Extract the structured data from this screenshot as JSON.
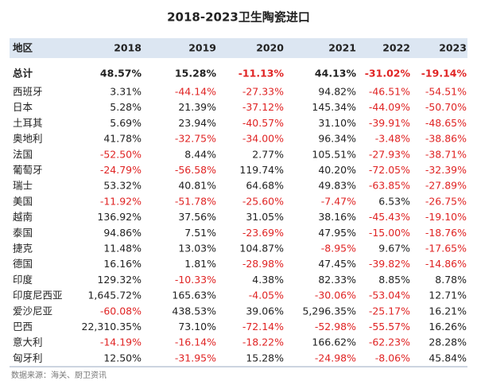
{
  "title": "2018-2023卫生陶瓷进口",
  "table": {
    "header": [
      "地区",
      "2018",
      "2019",
      "2020",
      "2021",
      "2022",
      "2023"
    ],
    "rows": [
      [
        "总计",
        "48.57%",
        "15.28%",
        "-11.13%",
        "44.13%",
        "-31.02%",
        "-19.14%"
      ],
      [
        "西班牙",
        "3.31%",
        "-44.14%",
        "-27.33%",
        "94.82%",
        "-46.51%",
        "-54.51%"
      ],
      [
        "日本",
        "5.28%",
        "21.39%",
        "-37.12%",
        "145.34%",
        "-44.09%",
        "-50.70%"
      ],
      [
        "土耳其",
        "5.69%",
        "23.94%",
        "-40.57%",
        "31.10%",
        "-39.91%",
        "-48.65%"
      ],
      [
        "奥地利",
        "41.78%",
        "-32.75%",
        "-34.00%",
        "96.34%",
        "-3.48%",
        "-38.86%"
      ],
      [
        "法国",
        "-52.50%",
        "8.44%",
        "2.77%",
        "105.51%",
        "-27.93%",
        "-38.71%"
      ],
      [
        "葡萄牙",
        "-24.79%",
        "-56.58%",
        "119.74%",
        "40.20%",
        "-72.05%",
        "-32.39%"
      ],
      [
        "瑞士",
        "53.32%",
        "40.81%",
        "64.68%",
        "49.83%",
        "-63.85%",
        "-27.89%"
      ],
      [
        "美国",
        "-11.92%",
        "-51.78%",
        "-25.60%",
        "-7.47%",
        "6.53%",
        "-26.75%"
      ],
      [
        "越南",
        "136.92%",
        "37.56%",
        "31.05%",
        "38.16%",
        "-45.43%",
        "-19.10%"
      ],
      [
        "泰国",
        "94.86%",
        "7.51%",
        "-23.69%",
        "47.95%",
        "-15.00%",
        "-18.76%"
      ],
      [
        "捷克",
        "11.48%",
        "13.03%",
        "104.87%",
        "-8.95%",
        "9.67%",
        "-17.65%"
      ],
      [
        "德国",
        "16.16%",
        "1.81%",
        "-28.98%",
        "47.45%",
        "-39.82%",
        "-14.86%"
      ],
      [
        "印度",
        "129.32%",
        "-10.33%",
        "4.38%",
        "82.33%",
        "8.85%",
        "8.78%"
      ],
      [
        "印度尼西亚",
        "1,645.72%",
        "165.63%",
        "-4.05%",
        "-30.06%",
        "-53.04%",
        "12.71%"
      ],
      [
        "爱沙尼亚",
        "-60.08%",
        "438.53%",
        "39.06%",
        "5,296.35%",
        "-25.17%",
        "16.21%"
      ],
      [
        "巴西",
        "22,310.35%",
        "73.10%",
        "-72.14%",
        "-52.98%",
        "-55.57%",
        "16.26%"
      ],
      [
        "意大利",
        "-14.19%",
        "-16.14%",
        "-18.22%",
        "166.62%",
        "-62.23%",
        "28.28%"
      ],
      [
        "匈牙利",
        "12.50%",
        "-31.95%",
        "15.28%",
        "-24.98%",
        "-8.06%",
        "45.84%"
      ]
    ]
  },
  "footer": "数据来源：海关、厨卫资讯"
}
